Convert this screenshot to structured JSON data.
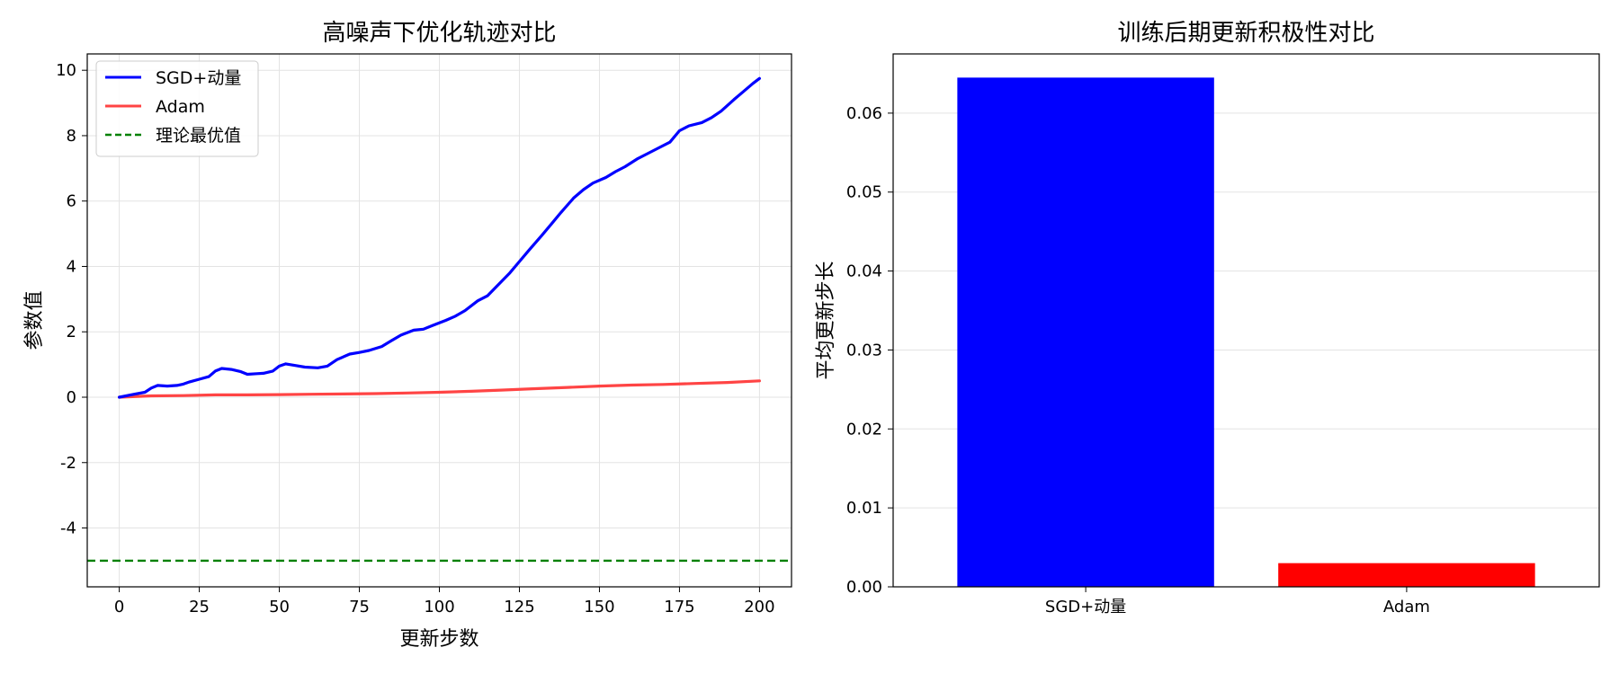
{
  "chart_data": [
    {
      "type": "line",
      "title": "高噪声下优化轨迹对比",
      "xlabel": "更新步数",
      "ylabel": "参数值",
      "xlim": [
        -10,
        210
      ],
      "ylim": [
        -5.8,
        10.5
      ],
      "xticks": [
        0,
        25,
        50,
        75,
        100,
        125,
        150,
        175,
        200
      ],
      "yticks": [
        -4,
        -2,
        0,
        2,
        4,
        6,
        8,
        10
      ],
      "grid": true,
      "legend": "upper-left",
      "series": [
        {
          "name": "SGD+动量",
          "color": "#0000ff",
          "style": "solid",
          "x": [
            0,
            5,
            8,
            10,
            12,
            15,
            18,
            20,
            22,
            25,
            28,
            30,
            32,
            35,
            38,
            40,
            43,
            45,
            48,
            50,
            52,
            55,
            58,
            62,
            65,
            68,
            72,
            75,
            78,
            82,
            85,
            88,
            92,
            95,
            98,
            102,
            105,
            108,
            112,
            115,
            118,
            122,
            125,
            128,
            132,
            135,
            138,
            142,
            145,
            148,
            152,
            155,
            158,
            162,
            165,
            168,
            172,
            175,
            178,
            182,
            185,
            188,
            192,
            195,
            198,
            200
          ],
          "y": [
            0.0,
            0.1,
            0.15,
            0.28,
            0.36,
            0.34,
            0.36,
            0.4,
            0.47,
            0.55,
            0.63,
            0.8,
            0.88,
            0.85,
            0.78,
            0.7,
            0.72,
            0.73,
            0.8,
            0.95,
            1.02,
            0.97,
            0.92,
            0.9,
            0.95,
            1.15,
            1.32,
            1.37,
            1.43,
            1.55,
            1.73,
            1.9,
            2.05,
            2.08,
            2.2,
            2.35,
            2.48,
            2.65,
            2.95,
            3.1,
            3.4,
            3.8,
            4.15,
            4.5,
            4.95,
            5.3,
            5.65,
            6.1,
            6.35,
            6.55,
            6.72,
            6.9,
            7.05,
            7.3,
            7.45,
            7.6,
            7.8,
            8.15,
            8.3,
            8.4,
            8.55,
            8.75,
            9.1,
            9.35,
            9.6,
            9.75
          ]
        },
        {
          "name": "Adam",
          "color": "#ff4444",
          "style": "solid",
          "x": [
            0,
            10,
            20,
            30,
            40,
            50,
            60,
            70,
            80,
            90,
            100,
            110,
            120,
            130,
            140,
            150,
            160,
            170,
            180,
            190,
            200
          ],
          "y": [
            0.0,
            0.04,
            0.05,
            0.07,
            0.07,
            0.08,
            0.09,
            0.1,
            0.11,
            0.13,
            0.15,
            0.18,
            0.22,
            0.26,
            0.3,
            0.34,
            0.37,
            0.39,
            0.42,
            0.45,
            0.5
          ]
        },
        {
          "name": "理论最优值",
          "color": "#008000",
          "style": "dashed",
          "hline": -5
        }
      ]
    },
    {
      "type": "bar",
      "title": "训练后期更新积极性对比",
      "xlabel": "",
      "ylabel": "平均更新步长",
      "categories": [
        "SGD+动量",
        "Adam"
      ],
      "values": [
        0.0645,
        0.003
      ],
      "colors": [
        "#0000ff",
        "#ff0000"
      ],
      "ylim": [
        0,
        0.0675
      ],
      "yticks": [
        0.0,
        0.01,
        0.02,
        0.03,
        0.04,
        0.05,
        0.06
      ],
      "ytick_labels": [
        "0.00",
        "0.01",
        "0.02",
        "0.03",
        "0.04",
        "0.05",
        "0.06"
      ],
      "grid": true
    }
  ]
}
